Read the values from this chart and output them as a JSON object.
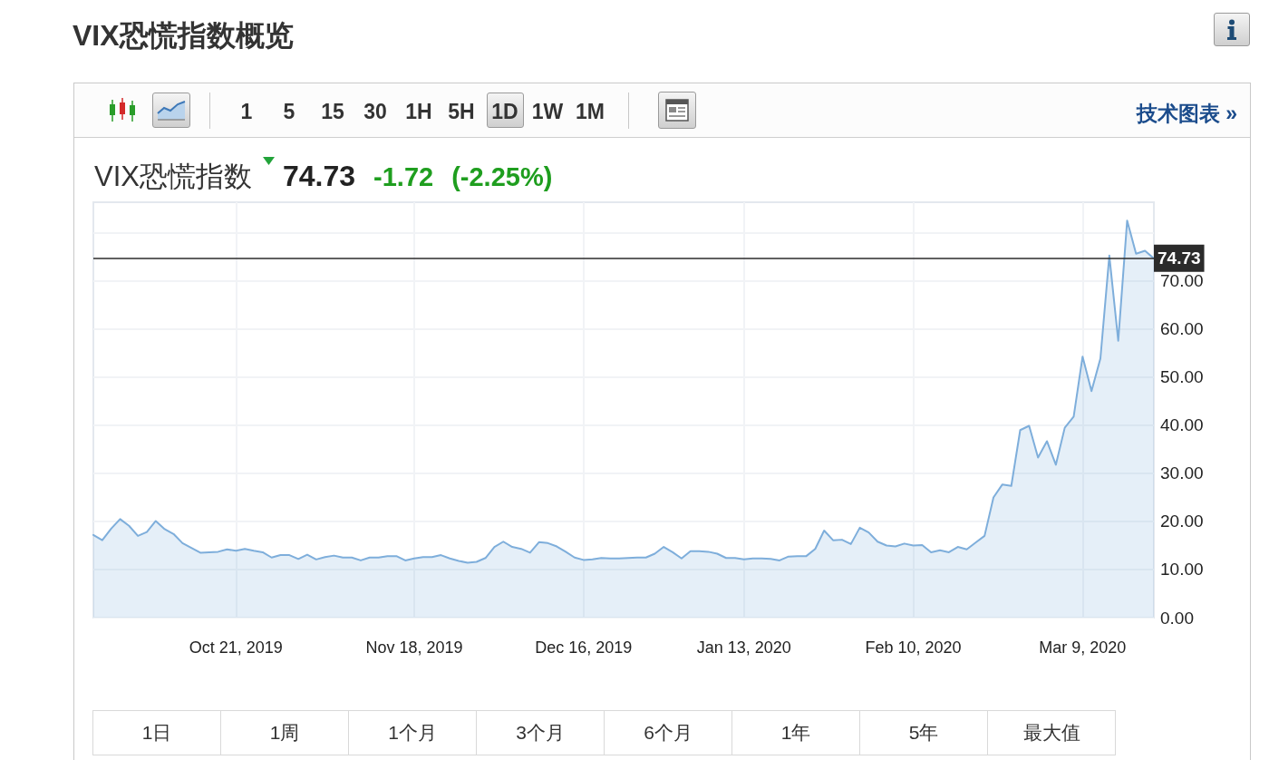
{
  "chart_data": {
    "type": "area",
    "title": "VIX恐慌指数概览",
    "subtitle": "VIX恐慌指数",
    "categories": [
      null,
      null,
      null,
      null,
      null,
      null,
      null,
      null,
      null,
      null,
      null,
      null,
      null,
      null,
      null,
      null,
      "Oct 21, 2019",
      null,
      null,
      null,
      null,
      null,
      null,
      null,
      null,
      null,
      null,
      null,
      null,
      null,
      null,
      null,
      null,
      null,
      null,
      null,
      "Nov 18, 2019",
      null,
      null,
      null,
      null,
      null,
      null,
      null,
      null,
      null,
      null,
      null,
      null,
      null,
      null,
      null,
      null,
      null,
      null,
      "Dec 16, 2019",
      null,
      null,
      null,
      null,
      null,
      null,
      null,
      null,
      null,
      null,
      null,
      null,
      null,
      null,
      null,
      null,
      null,
      "Jan 13, 2020",
      null,
      null,
      null,
      null,
      null,
      null,
      null,
      null,
      null,
      null,
      null,
      null,
      null,
      null,
      null,
      null,
      null,
      null,
      "Feb 10, 2020",
      null,
      null,
      null,
      null,
      null,
      null,
      null,
      null,
      null,
      null,
      null,
      null,
      null,
      null,
      null,
      null,
      null,
      null,
      "Mar 9, 2020",
      null,
      null,
      null,
      null,
      null,
      null,
      null,
      null
    ],
    "series": [
      {
        "color": "#7eaedb",
        "values": [
          17.2,
          16.1,
          18.5,
          20.5,
          19.1,
          17.0,
          17.8,
          20.1,
          18.4,
          17.4,
          15.5,
          14.5,
          13.5,
          13.6,
          13.7,
          14.2,
          13.9,
          14.3,
          13.9,
          13.6,
          12.5,
          13.0,
          13.0,
          12.2,
          13.1,
          12.1,
          12.6,
          12.9,
          12.5,
          12.5,
          11.9,
          12.5,
          12.5,
          12.8,
          12.8,
          11.9,
          12.3,
          12.6,
          12.6,
          13.0,
          12.3,
          11.8,
          11.4,
          11.6,
          12.4,
          14.7,
          15.8,
          14.7,
          14.3,
          13.5,
          15.7,
          15.5,
          14.8,
          13.7,
          12.5,
          12.0,
          12.1,
          12.4,
          12.3,
          12.3,
          12.4,
          12.5,
          12.5,
          13.3,
          14.7,
          13.6,
          12.3,
          13.8,
          13.8,
          13.7,
          13.3,
          12.4,
          12.4,
          12.1,
          12.3,
          12.3,
          12.2,
          11.9,
          12.7,
          12.8,
          12.8,
          14.3,
          18.1,
          16.1,
          16.2,
          15.3,
          18.7,
          17.7,
          15.8,
          15.0,
          14.8,
          15.4,
          15.0,
          15.1,
          13.6,
          14.0,
          13.6,
          14.7,
          14.2,
          15.6,
          17.0,
          25.0,
          27.7,
          27.4,
          39.0,
          39.9,
          33.3,
          36.7,
          31.8,
          39.5,
          41.8,
          54.3,
          47.1,
          53.9,
          75.3,
          57.6,
          82.6,
          75.7,
          76.3,
          74.7
        ]
      }
    ],
    "ylim": [
      0,
      86.4
    ],
    "yticks": [
      {
        "value": 0,
        "label": "0.00"
      },
      {
        "value": 10,
        "label": "10.00"
      },
      {
        "value": 20,
        "label": "20.00"
      },
      {
        "value": 30,
        "label": "30.00"
      },
      {
        "value": 40,
        "label": "40.00"
      },
      {
        "value": 50,
        "label": "50.00"
      },
      {
        "value": 60,
        "label": "60.00"
      },
      {
        "value": 70,
        "label": "70.00"
      },
      {
        "value": 80,
        "label": null
      }
    ],
    "grid": true,
    "ref_lines": [
      {
        "axis": "y",
        "value": 74.73,
        "label": "74.73",
        "color": "#2b2b2b"
      }
    ],
    "annotations": [
      "74.73",
      "-1.72",
      "(-2.25%)",
      "1",
      "5",
      "15",
      "30",
      "1H",
      "5H",
      "1D",
      "1W",
      "1M",
      "技术图表 »",
      "1日",
      "1周",
      "1个月",
      "3个月",
      "6个月",
      "1年",
      "5年",
      "最大值"
    ]
  }
}
